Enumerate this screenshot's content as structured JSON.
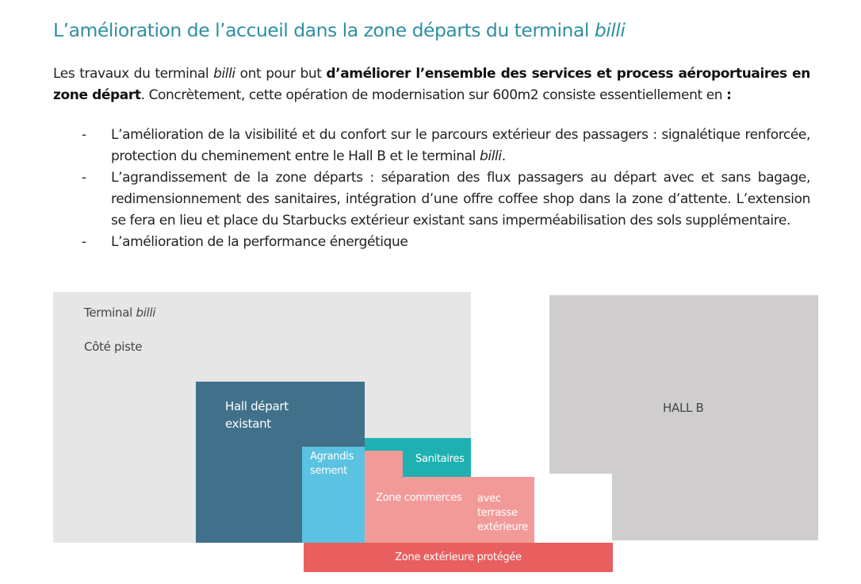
{
  "title": {
    "text": "L’amélioration de l’accueil dans la zone départs du terminal ",
    "italic": "billi"
  },
  "intro": {
    "p1": "Les travaux du terminal ",
    "p1_italic": "billi",
    "p2": " ont pour but ",
    "bold": "d’améliorer l’ensemble des services et process aéroportuaires en zone départ",
    "p3": ". Concrètement, cette opération de modernisation sur 600m2 consiste essentiellement en ",
    "colon": ":"
  },
  "bullets": [
    {
      "dash": "-",
      "text": "L’amélioration de la visibilité et du confort sur le parcours extérieur des passagers : signalétique renforcée, protection du cheminement entre le Hall B et le terminal ",
      "italic": "billi",
      "end": "."
    },
    {
      "dash": "-",
      "text": "L’agrandissement de la zone départs : séparation des flux passagers au départ avec et sans bagage, redimensionnement des sanitaires, intégration d’une offre coffee shop dans la zone d’attente. L’extension se fera en lieu et place du Starbucks extérieur existant sans imperméabilisation des sols supplémentaire."
    },
    {
      "dash": "-",
      "text": "L’amélioration de la performance énergétique"
    }
  ],
  "diagram": {
    "terminal_label": "Terminal ",
    "terminal_italic": "billi",
    "cote_piste": "Côté piste",
    "hall_b": "HALL B",
    "hall_depart": [
      "Hall départ",
      "existant"
    ],
    "agrandissement": [
      "Agrandis",
      "sement"
    ],
    "sanitaires": "Sanitaires",
    "zone_commerces": "Zone commerces",
    "terrasse": [
      "avec",
      "terrasse",
      "extérieure"
    ],
    "zone_exterieure": "Zone extérieure protégée",
    "colors": {
      "terminal": "#e6e6e6",
      "hall_b": "#cfcdcd",
      "hall_depart": "#41718a",
      "agrandissement": "#5bc2e1",
      "sanitaires": "#1fb1b1",
      "commerces": "#f29a98",
      "exterieure": "#e95f5f",
      "title": "#2f8fa3"
    }
  }
}
